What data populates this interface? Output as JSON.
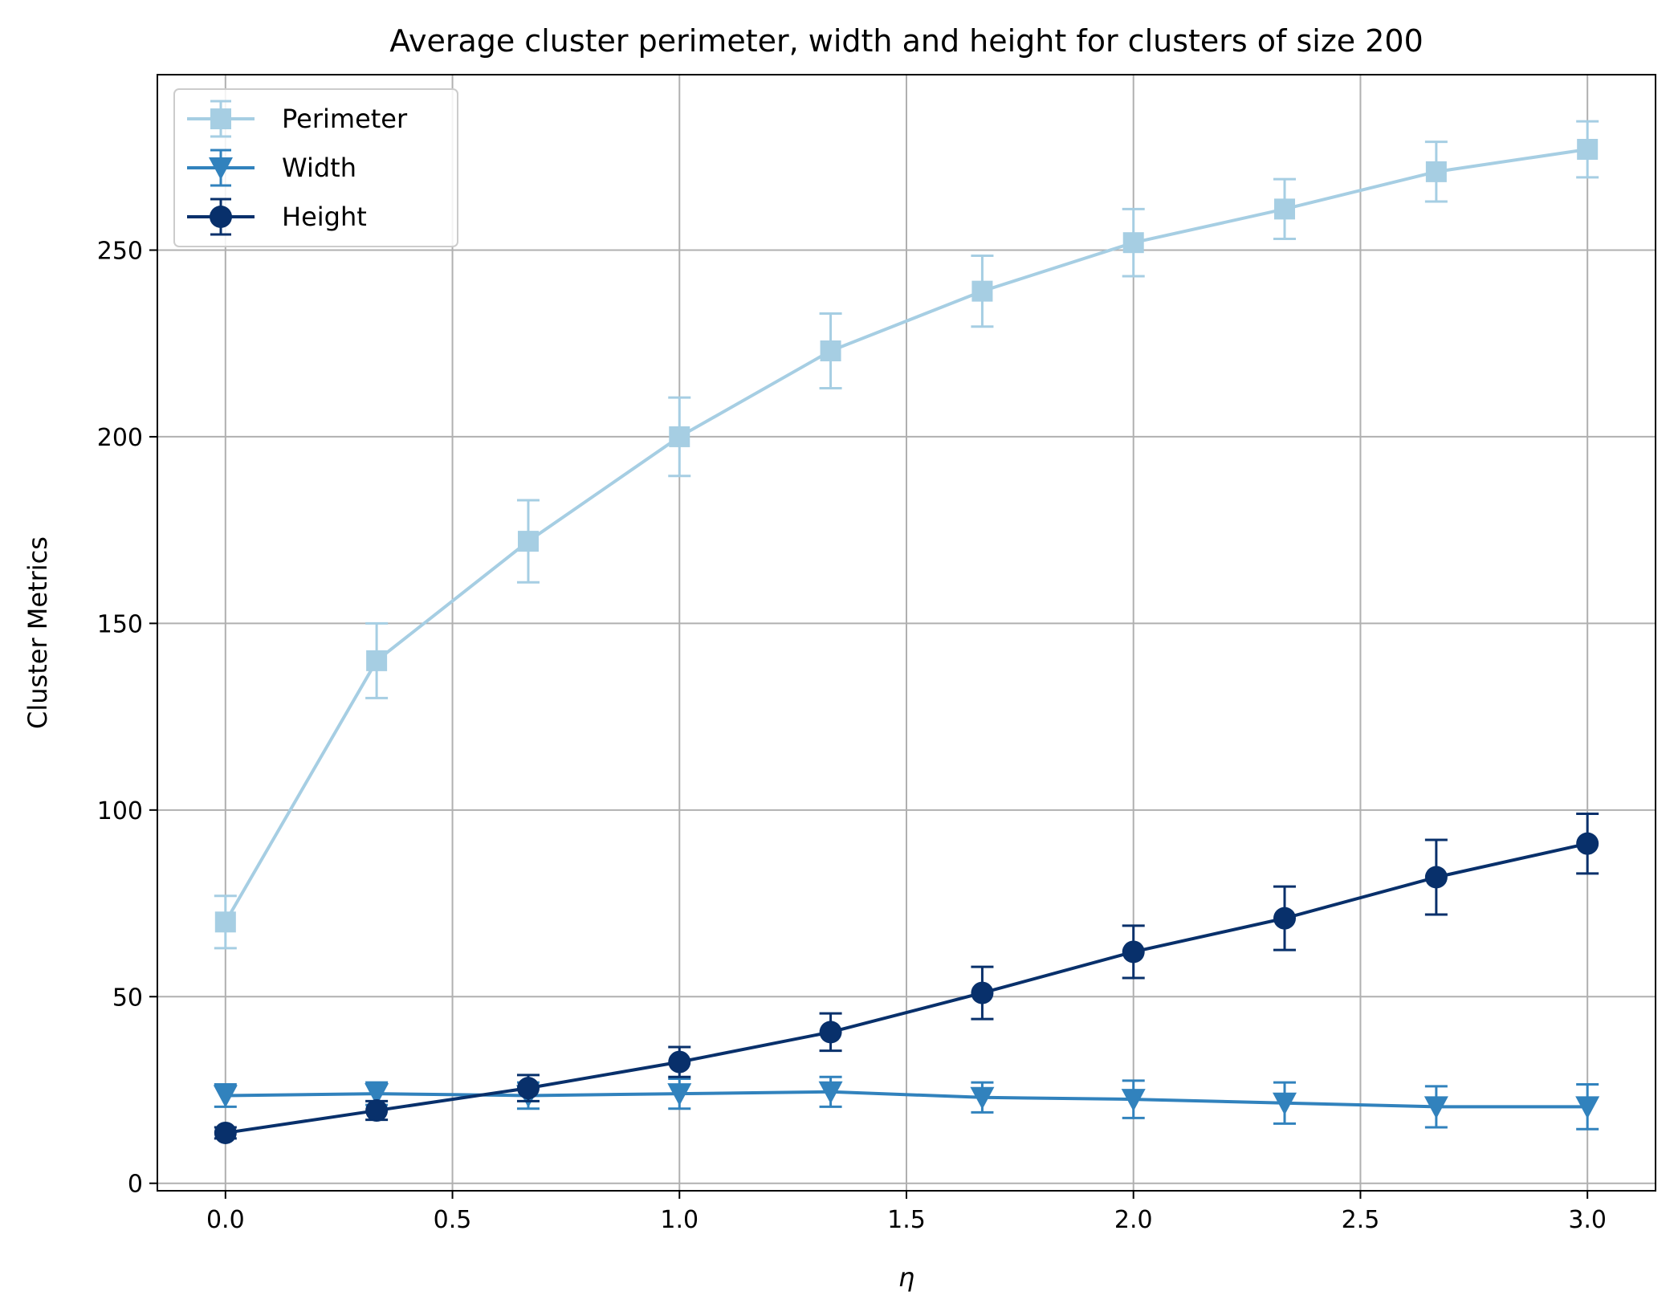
{
  "chart_data": {
    "type": "line",
    "title": "Average cluster perimeter, width and height for clusters of size 200",
    "xlabel": "η",
    "ylabel": "Cluster Metrics",
    "xlim": [
      -0.15,
      3.15
    ],
    "ylim": [
      -2,
      297
    ],
    "xticks": [
      0.0,
      0.5,
      1.0,
      1.5,
      2.0,
      2.5,
      3.0
    ],
    "xtick_labels": [
      "0.0",
      "0.5",
      "1.0",
      "1.5",
      "2.0",
      "2.5",
      "3.0"
    ],
    "yticks": [
      0,
      50,
      100,
      150,
      200,
      250
    ],
    "ytick_labels": [
      "0",
      "50",
      "100",
      "150",
      "200",
      "250"
    ],
    "grid": true,
    "legend_position": "top-left",
    "x": [
      0.0,
      0.333,
      0.667,
      1.0,
      1.333,
      1.667,
      2.0,
      2.333,
      2.667,
      3.0
    ],
    "series": [
      {
        "name": "Perimeter",
        "color": "#a6cee3",
        "marker": "square",
        "values": [
          70,
          140,
          172,
          200,
          223,
          239,
          252,
          261,
          271,
          277
        ],
        "errors": [
          7,
          10,
          11,
          10.5,
          10,
          9.5,
          9,
          8,
          8,
          7.5
        ]
      },
      {
        "name": "Width",
        "color": "#3182bd",
        "marker": "triangle-down",
        "values": [
          23.5,
          24,
          23.5,
          24,
          24.5,
          23,
          22.5,
          21.5,
          20.5,
          20.5
        ],
        "errors": [
          3,
          3,
          3.5,
          4,
          4,
          4,
          5,
          5.5,
          5.5,
          6
        ]
      },
      {
        "name": "Height",
        "color": "#08306b",
        "marker": "circle",
        "values": [
          13.5,
          19.5,
          25.5,
          32.5,
          40.5,
          51,
          62,
          71,
          82,
          91
        ],
        "errors": [
          1.5,
          2.5,
          3.5,
          4,
          5,
          7,
          7,
          8.5,
          10,
          8
        ]
      }
    ]
  }
}
